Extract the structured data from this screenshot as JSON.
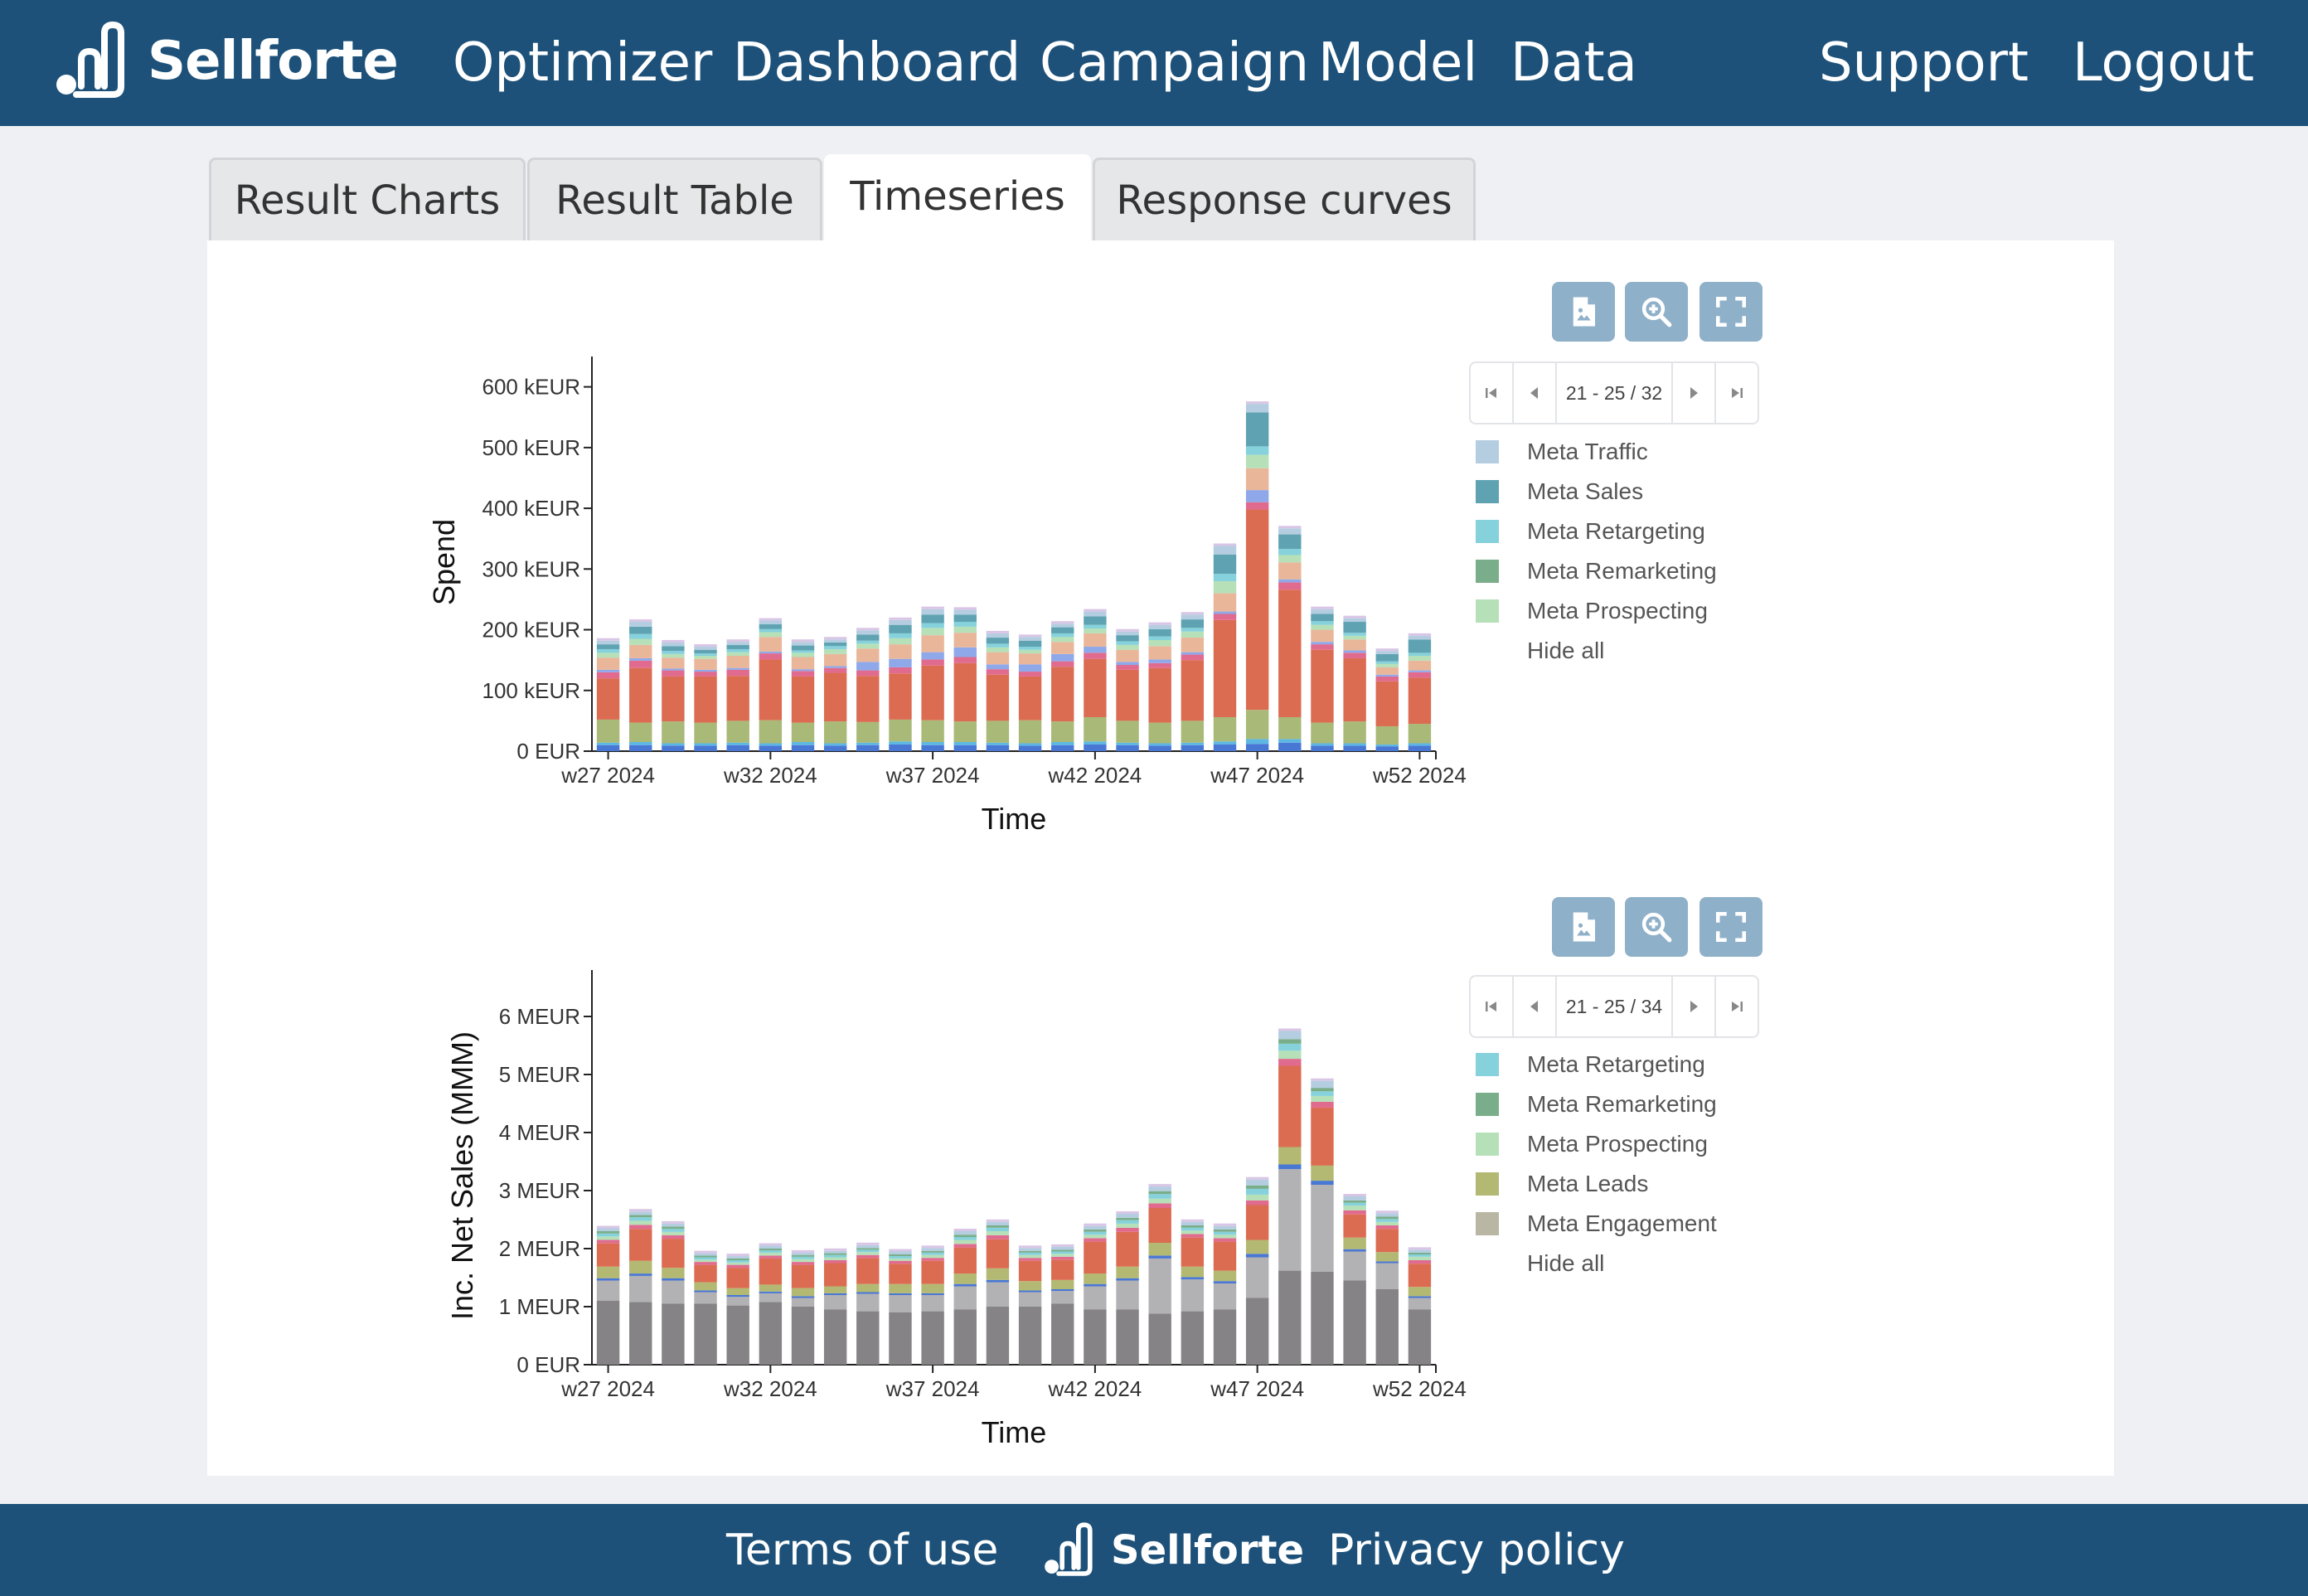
{
  "app": {
    "brand": "Sellforte"
  },
  "nav": {
    "items": [
      "Optimizer",
      "Dashboard",
      "Campaign",
      "Model",
      "Data"
    ],
    "right": [
      "Support",
      "Logout"
    ]
  },
  "tabs": [
    "Result Charts",
    "Result Table",
    "Timeseries",
    "Response curves"
  ],
  "active_tab": "Timeseries",
  "footer": {
    "terms": "Terms of use",
    "privacy": "Privacy policy",
    "brand": "Sellforte"
  },
  "colors": {
    "brand_bar": "#1d5179",
    "tool_button": "#8fb0c9",
    "channels": {
      "meta_traffic": "#b4cde0",
      "meta_sales": "#5fa3b2",
      "meta_retargeting": "#85d1dc",
      "meta_remarketing": "#7aae8a",
      "meta_prospecting": "#b6e0b8",
      "meta_leads": "#b3b972",
      "meta_engagement": "#b9b7a3",
      "pink_channel": "#e06b8e",
      "rose_channel": "#f0938e",
      "purple_channel": "#b07bcf",
      "orange_channel": "#db6c52",
      "sand_channel": "#e9b69a",
      "olive_channel": "#a9b977",
      "blue_channel": "#8fa8ea",
      "dark_blue_channel": "#4877d4",
      "light_blue_channel": "#5cb7e3",
      "dark_grey_channel": "#868386",
      "light_grey_channel": "#b2b1b4",
      "olive_grey_channel": "#b7b89a"
    }
  },
  "charts": [
    {
      "toolbar": {
        "icons": [
          "export-image-icon",
          "zoom-icon",
          "fullscreen-icon"
        ]
      },
      "pager": {
        "text": "21 - 25 / 32"
      },
      "legend": {
        "items": [
          {
            "label": "Meta Traffic",
            "color": "#b4cde0"
          },
          {
            "label": "Meta Sales",
            "color": "#5fa3b2"
          },
          {
            "label": "Meta Retargeting",
            "color": "#85d1dc"
          },
          {
            "label": "Meta Remarketing",
            "color": "#7aae8a"
          },
          {
            "label": "Meta Prospecting",
            "color": "#b6e0b8"
          }
        ],
        "hide_all": "Hide all"
      }
    },
    {
      "toolbar": {
        "icons": [
          "export-image-icon",
          "zoom-icon",
          "fullscreen-icon"
        ]
      },
      "pager": {
        "text": "21 - 25 / 34"
      },
      "legend": {
        "items": [
          {
            "label": "Meta Retargeting",
            "color": "#85d1dc"
          },
          {
            "label": "Meta Remarketing",
            "color": "#7aae8a"
          },
          {
            "label": "Meta Prospecting",
            "color": "#b6e0b8"
          },
          {
            "label": "Meta Leads",
            "color": "#b3b972"
          },
          {
            "label": "Meta Engagement",
            "color": "#b9b7a3"
          }
        ],
        "hide_all": "Hide all"
      }
    }
  ],
  "chart_data": [
    {
      "type": "bar",
      "stacked": true,
      "xlabel": "Time",
      "ylabel": "Spend",
      "ylim": [
        0,
        650
      ],
      "y_ticks": [
        0,
        100,
        200,
        300,
        400,
        500,
        600
      ],
      "y_tick_labels": [
        "0 EUR",
        "100 kEUR",
        "200 kEUR",
        "300 kEUR",
        "400 kEUR",
        "500 kEUR",
        "600 kEUR"
      ],
      "x_ticks": [
        "w27 2024",
        "w32 2024",
        "w37 2024",
        "w42 2024",
        "w47 2024",
        "w52 2024"
      ],
      "x_tick_index": [
        0,
        5,
        10,
        15,
        20,
        25
      ],
      "categories": [
        "w27 2024",
        "w28 2024",
        "w29 2024",
        "w30 2024",
        "w31 2024",
        "w32 2024",
        "w33 2024",
        "w34 2024",
        "w35 2024",
        "w36 2024",
        "w37 2024",
        "w38 2024",
        "w39 2024",
        "w40 2024",
        "w41 2024",
        "w42 2024",
        "w43 2024",
        "w44 2024",
        "w45 2024",
        "w46 2024",
        "w47 2024",
        "w48 2024",
        "w49 2024",
        "w50 2024",
        "w51 2024",
        "w52 2024"
      ],
      "series": [
        {
          "color": "#4877d4",
          "values": [
            10,
            10,
            9,
            9,
            10,
            9,
            10,
            9,
            10,
            11,
            10,
            10,
            10,
            9,
            10,
            11,
            10,
            9,
            10,
            11,
            12,
            14,
            9,
            9,
            8,
            9
          ]
        },
        {
          "color": "#5cb7e3",
          "values": [
            4,
            5,
            4,
            4,
            4,
            4,
            5,
            4,
            4,
            5,
            5,
            5,
            4,
            4,
            5,
            5,
            4,
            4,
            4,
            5,
            8,
            6,
            4,
            4,
            3,
            4
          ]
        },
        {
          "color": "#a9b977",
          "values": [
            38,
            32,
            36,
            34,
            36,
            38,
            32,
            36,
            34,
            36,
            36,
            34,
            36,
            38,
            34,
            40,
            36,
            34,
            36,
            40,
            48,
            36,
            34,
            36,
            30,
            32
          ]
        },
        {
          "color": "#db6c52",
          "values": [
            68,
            90,
            74,
            76,
            74,
            100,
            76,
            80,
            76,
            76,
            90,
            96,
            76,
            72,
            90,
            96,
            84,
            90,
            100,
            160,
            330,
            210,
            120,
            104,
            74,
            76
          ]
        },
        {
          "color": "#e06b8e",
          "values": [
            10,
            12,
            10,
            8,
            10,
            10,
            9,
            8,
            9,
            10,
            10,
            10,
            9,
            8,
            9,
            10,
            8,
            8,
            9,
            10,
            12,
            12,
            9,
            9,
            8,
            9
          ]
        },
        {
          "color": "#8fa8ea",
          "values": [
            4,
            4,
            3,
            3,
            3,
            3,
            3,
            3,
            14,
            14,
            12,
            16,
            8,
            12,
            12,
            10,
            5,
            6,
            4,
            4,
            20,
            5,
            4,
            4,
            3,
            3
          ]
        },
        {
          "color": "#e9b69a",
          "values": [
            20,
            22,
            18,
            18,
            20,
            24,
            20,
            20,
            22,
            24,
            28,
            24,
            20,
            18,
            20,
            22,
            20,
            22,
            24,
            30,
            36,
            28,
            20,
            18,
            12,
            16
          ]
        },
        {
          "color": "#b6e0b8",
          "values": [
            8,
            10,
            6,
            5,
            6,
            8,
            7,
            8,
            8,
            10,
            12,
            10,
            8,
            6,
            8,
            8,
            8,
            10,
            10,
            20,
            22,
            12,
            8,
            6,
            6,
            8
          ]
        },
        {
          "color": "#85d1dc",
          "values": [
            6,
            8,
            5,
            4,
            5,
            5,
            4,
            5,
            5,
            8,
            8,
            8,
            6,
            5,
            6,
            6,
            6,
            6,
            6,
            12,
            14,
            10,
            6,
            5,
            4,
            5
          ]
        },
        {
          "color": "#5fa3b2",
          "values": [
            8,
            12,
            8,
            6,
            7,
            8,
            8,
            6,
            10,
            14,
            14,
            12,
            10,
            10,
            10,
            14,
            10,
            12,
            14,
            32,
            56,
            24,
            12,
            18,
            12,
            22
          ]
        },
        {
          "color": "#b4cde0",
          "values": [
            6,
            8,
            6,
            5,
            5,
            6,
            6,
            5,
            7,
            8,
            9,
            8,
            7,
            6,
            6,
            8,
            6,
            7,
            8,
            14,
            14,
            10,
            8,
            6,
            5,
            6
          ]
        }
      ]
    },
    {
      "type": "bar",
      "stacked": true,
      "xlabel": "Time",
      "ylabel": "Inc. Net Sales (MMM)",
      "ylim": [
        0,
        6.8
      ],
      "y_ticks": [
        0,
        1,
        2,
        3,
        4,
        5,
        6
      ],
      "y_tick_labels": [
        "0 EUR",
        "1 MEUR",
        "2 MEUR",
        "3 MEUR",
        "4 MEUR",
        "5 MEUR",
        "6 MEUR"
      ],
      "x_ticks": [
        "w27 2024",
        "w32 2024",
        "w37 2024",
        "w42 2024",
        "w47 2024",
        "w52 2024"
      ],
      "x_tick_index": [
        0,
        5,
        10,
        15,
        20,
        25
      ],
      "categories": [
        "w27 2024",
        "w28 2024",
        "w29 2024",
        "w30 2024",
        "w31 2024",
        "w32 2024",
        "w33 2024",
        "w34 2024",
        "w35 2024",
        "w36 2024",
        "w37 2024",
        "w38 2024",
        "w39 2024",
        "w40 2024",
        "w41 2024",
        "w42 2024",
        "w43 2024",
        "w44 2024",
        "w45 2024",
        "w46 2024",
        "w47 2024",
        "w48 2024",
        "w49 2024",
        "w50 2024",
        "w51 2024",
        "w52 2024"
      ],
      "series": [
        {
          "color": "#868386",
          "values": [
            1.1,
            1.08,
            1.05,
            1.05,
            1.02,
            1.08,
            1.0,
            0.95,
            0.92,
            0.9,
            0.92,
            0.95,
            1.0,
            1.0,
            1.05,
            0.95,
            0.95,
            0.88,
            0.92,
            0.95,
            1.15,
            1.62,
            1.6,
            1.45,
            1.3,
            0.95
          ]
        },
        {
          "color": "#b2b1b4",
          "values": [
            0.35,
            0.45,
            0.4,
            0.2,
            0.15,
            0.15,
            0.15,
            0.25,
            0.3,
            0.3,
            0.28,
            0.4,
            0.42,
            0.25,
            0.22,
            0.4,
            0.5,
            0.95,
            0.55,
            0.45,
            0.7,
            1.75,
            1.5,
            0.5,
            0.45,
            0.2
          ]
        },
        {
          "color": "#4877d4",
          "values": [
            0.04,
            0.04,
            0.04,
            0.03,
            0.03,
            0.03,
            0.03,
            0.03,
            0.03,
            0.03,
            0.03,
            0.04,
            0.04,
            0.03,
            0.03,
            0.04,
            0.04,
            0.05,
            0.04,
            0.04,
            0.06,
            0.08,
            0.07,
            0.04,
            0.03,
            0.03
          ]
        },
        {
          "color": "#b3b972",
          "values": [
            0.2,
            0.22,
            0.18,
            0.14,
            0.12,
            0.12,
            0.14,
            0.12,
            0.14,
            0.16,
            0.16,
            0.18,
            0.2,
            0.16,
            0.16,
            0.18,
            0.2,
            0.22,
            0.18,
            0.18,
            0.24,
            0.3,
            0.26,
            0.2,
            0.16,
            0.16
          ]
        },
        {
          "color": "#db6c52",
          "values": [
            0.4,
            0.55,
            0.5,
            0.3,
            0.35,
            0.45,
            0.4,
            0.4,
            0.45,
            0.35,
            0.4,
            0.45,
            0.5,
            0.35,
            0.35,
            0.55,
            0.6,
            0.6,
            0.5,
            0.5,
            0.6,
            1.4,
            1.0,
            0.4,
            0.4,
            0.4
          ]
        },
        {
          "color": "#e06b8e",
          "values": [
            0.06,
            0.07,
            0.06,
            0.05,
            0.05,
            0.05,
            0.05,
            0.05,
            0.05,
            0.05,
            0.05,
            0.06,
            0.07,
            0.05,
            0.05,
            0.06,
            0.07,
            0.08,
            0.06,
            0.06,
            0.08,
            0.12,
            0.1,
            0.07,
            0.06,
            0.06
          ]
        },
        {
          "color": "#b6e0b8",
          "values": [
            0.06,
            0.07,
            0.06,
            0.04,
            0.04,
            0.05,
            0.05,
            0.05,
            0.05,
            0.04,
            0.05,
            0.07,
            0.07,
            0.05,
            0.05,
            0.06,
            0.07,
            0.08,
            0.06,
            0.06,
            0.1,
            0.14,
            0.1,
            0.08,
            0.06,
            0.06
          ]
        },
        {
          "color": "#85d1dc",
          "values": [
            0.05,
            0.06,
            0.05,
            0.04,
            0.04,
            0.04,
            0.04,
            0.04,
            0.04,
            0.04,
            0.04,
            0.05,
            0.06,
            0.04,
            0.04,
            0.05,
            0.06,
            0.08,
            0.05,
            0.05,
            0.1,
            0.12,
            0.08,
            0.05,
            0.05,
            0.04
          ]
        },
        {
          "color": "#7aae8a",
          "values": [
            0.04,
            0.04,
            0.04,
            0.03,
            0.03,
            0.03,
            0.03,
            0.03,
            0.03,
            0.03,
            0.03,
            0.04,
            0.04,
            0.03,
            0.03,
            0.04,
            0.04,
            0.05,
            0.04,
            0.04,
            0.06,
            0.08,
            0.06,
            0.04,
            0.04,
            0.03
          ]
        },
        {
          "color": "#b4cde0",
          "values": [
            0.05,
            0.06,
            0.05,
            0.04,
            0.04,
            0.05,
            0.04,
            0.04,
            0.05,
            0.05,
            0.05,
            0.06,
            0.06,
            0.05,
            0.05,
            0.06,
            0.07,
            0.08,
            0.06,
            0.06,
            0.1,
            0.14,
            0.12,
            0.07,
            0.06,
            0.05
          ]
        }
      ]
    }
  ]
}
